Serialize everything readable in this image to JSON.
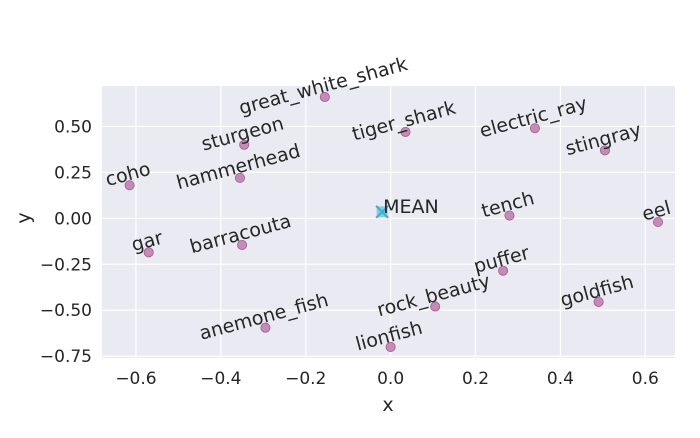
{
  "chart_data": {
    "type": "scatter",
    "title": "",
    "xlabel": "x",
    "ylabel": "y",
    "xlim": [
      -0.68,
      0.67
    ],
    "ylim": [
      -0.76,
      0.72
    ],
    "xticks": [
      -0.6,
      -0.4,
      -0.2,
      0.0,
      0.2,
      0.4,
      0.6
    ],
    "xtick_labels": [
      "−0.6",
      "−0.4",
      "−0.2",
      "0.0",
      "0.2",
      "0.4",
      "0.6"
    ],
    "yticks": [
      -0.75,
      -0.5,
      -0.25,
      0.0,
      0.25,
      0.5
    ],
    "ytick_labels": [
      "−0.75",
      "−0.50",
      "−0.25",
      "0.00",
      "0.25",
      "0.50"
    ],
    "grid": true,
    "background_color": "#eaeaf2",
    "point_color": "#c27fb0",
    "mean_color": "#3bb0d0",
    "label_rotation_deg": 15,
    "points": [
      {
        "label": "great_white_shark",
        "x": -0.155,
        "y": 0.66
      },
      {
        "label": "sturgeon",
        "x": -0.345,
        "y": 0.4
      },
      {
        "label": "tiger_shark",
        "x": 0.035,
        "y": 0.47
      },
      {
        "label": "electric_ray",
        "x": 0.34,
        "y": 0.49
      },
      {
        "label": "stingray",
        "x": 0.505,
        "y": 0.37
      },
      {
        "label": "hammerhead",
        "x": -0.355,
        "y": 0.22
      },
      {
        "label": "coho",
        "x": -0.615,
        "y": 0.18
      },
      {
        "label": "tench",
        "x": 0.28,
        "y": 0.015
      },
      {
        "label": "eel",
        "x": 0.63,
        "y": -0.02
      },
      {
        "label": "gar",
        "x": -0.57,
        "y": -0.185
      },
      {
        "label": "barracouta",
        "x": -0.35,
        "y": -0.145
      },
      {
        "label": "puffer",
        "x": 0.265,
        "y": -0.285
      },
      {
        "label": "anemone_fish",
        "x": -0.295,
        "y": -0.595
      },
      {
        "label": "rock_beauty",
        "x": 0.105,
        "y": -0.48
      },
      {
        "label": "goldfish",
        "x": 0.49,
        "y": -0.455
      },
      {
        "label": "lionfish",
        "x": 0.0,
        "y": -0.7
      }
    ],
    "mean": {
      "label": "MEAN",
      "x": -0.02,
      "y": 0.035
    }
  }
}
